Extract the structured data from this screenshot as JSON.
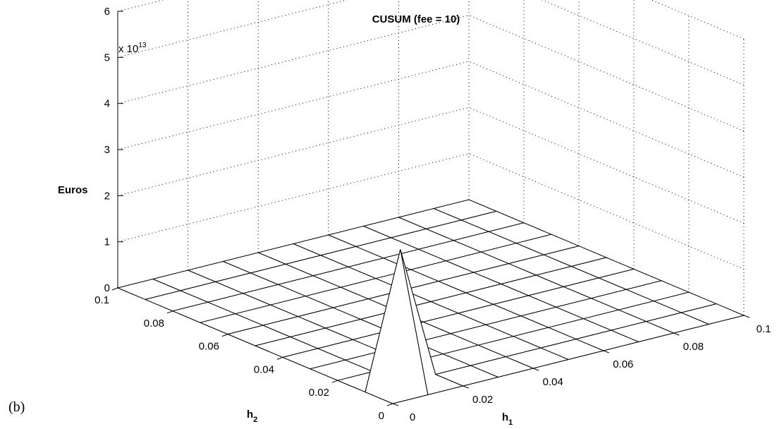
{
  "chart_data": {
    "type": "surface",
    "title": "CUSUM (fee = 10)",
    "panel_label": "(b)",
    "xlabel": "h",
    "xlabel_sub": "1",
    "ylabel": "h",
    "ylabel_sub": "2",
    "zlabel": "Euros",
    "z_multiplier": "x 10",
    "z_multiplier_exp": "13",
    "xlim": [
      0,
      0.1
    ],
    "ylim": [
      0,
      0.1
    ],
    "zlim": [
      0,
      60000000000000
    ],
    "x_ticks": [
      "0",
      "0.02",
      "0.04",
      "0.06",
      "0.08",
      "0.1"
    ],
    "y_ticks": [
      "0",
      "0.02",
      "0.04",
      "0.06",
      "0.08",
      "0.1"
    ],
    "z_ticks": [
      "0",
      "1",
      "2",
      "3",
      "4",
      "5",
      "6"
    ],
    "grid": true,
    "mesh_divisions": 10,
    "x": [
      0,
      0.01,
      0.02,
      0.03,
      0.04,
      0.05,
      0.06,
      0.07,
      0.08,
      0.09,
      0.1
    ],
    "y": [
      0,
      0.01,
      0.02,
      0.03,
      0.04,
      0.05,
      0.06,
      0.07,
      0.08,
      0.09,
      0.1
    ],
    "peak": {
      "h1": 0.01,
      "h2": 0.01,
      "value": 29000000000000
    },
    "surface_default": 0
  }
}
